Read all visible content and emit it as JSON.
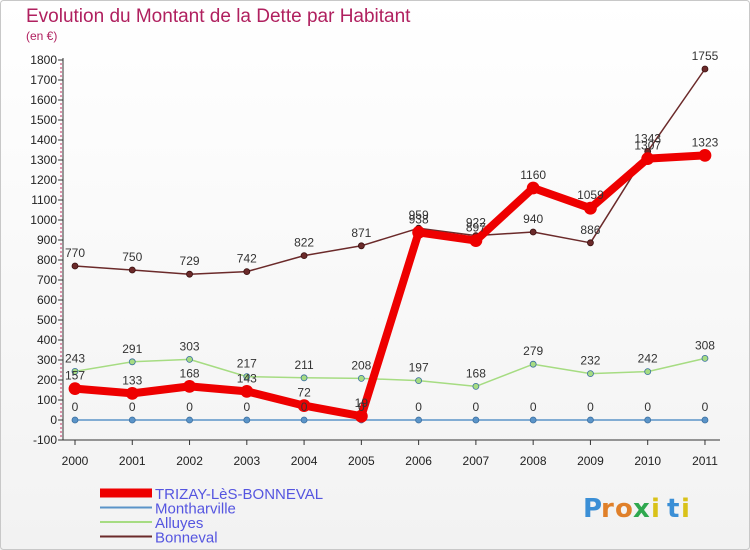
{
  "chart_data": {
    "type": "line",
    "title": "Evolution du Montant de la Dette par Habitant",
    "subtitle": "(en €)",
    "xlabel": "",
    "ylabel": "",
    "categories": [
      "2000",
      "2001",
      "2002",
      "2003",
      "2004",
      "2005",
      "2006",
      "2007",
      "2008",
      "2009",
      "2010",
      "2011"
    ],
    "ylim": [
      -100,
      1800
    ],
    "yticks": [
      -100,
      0,
      100,
      200,
      300,
      400,
      500,
      600,
      700,
      800,
      900,
      1000,
      1100,
      1200,
      1300,
      1400,
      1500,
      1600,
      1700,
      1800
    ],
    "grid": false,
    "legend_position": "bottom-left",
    "series": [
      {
        "name": "TRIZAY-LèS-BONNEVAL",
        "color": "#ee0000",
        "values": [
          157,
          133,
          168,
          143,
          72,
          19,
          938,
          897,
          1160,
          1059,
          1307,
          1323
        ]
      },
      {
        "name": "Montharville",
        "color": "#5b94c8",
        "values": [
          0,
          0,
          0,
          0,
          0,
          0,
          0,
          0,
          0,
          0,
          0,
          0
        ]
      },
      {
        "name": "Alluyes",
        "color": "#a6dc82",
        "values": [
          243,
          291,
          303,
          217,
          211,
          208,
          197,
          168,
          279,
          232,
          242,
          308
        ]
      },
      {
        "name": "Bonneval",
        "color": "#6b2a2a",
        "values": [
          770,
          750,
          729,
          742,
          822,
          871,
          959,
          922,
          940,
          886,
          1343,
          1755
        ]
      }
    ]
  },
  "logo": {
    "text": "Proxiti",
    "colors": [
      "#3b8fd6",
      "#e0802a",
      "#e0802a",
      "#2fa84f",
      "#d9c21a",
      "#3b8fd6",
      "#d9c21a"
    ]
  }
}
